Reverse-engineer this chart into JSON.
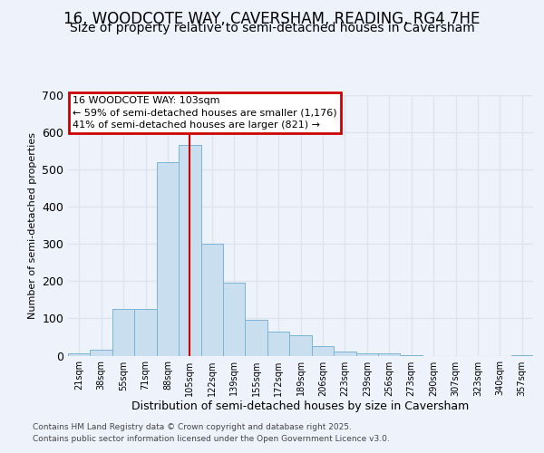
{
  "title1": "16, WOODCOTE WAY, CAVERSHAM, READING, RG4 7HE",
  "title2": "Size of property relative to semi-detached houses in Caversham",
  "xlabel": "Distribution of semi-detached houses by size in Caversham",
  "ylabel": "Number of semi-detached properties",
  "categories": [
    "21sqm",
    "38sqm",
    "55sqm",
    "71sqm",
    "88sqm",
    "105sqm",
    "122sqm",
    "139sqm",
    "155sqm",
    "172sqm",
    "189sqm",
    "206sqm",
    "223sqm",
    "239sqm",
    "256sqm",
    "273sqm",
    "290sqm",
    "307sqm",
    "323sqm",
    "340sqm",
    "357sqm"
  ],
  "values": [
    5,
    15,
    125,
    125,
    520,
    565,
    300,
    195,
    95,
    65,
    55,
    25,
    10,
    5,
    5,
    2,
    0,
    0,
    0,
    0,
    2
  ],
  "bar_color": "#c9dff0",
  "bar_edge_color": "#7ab4d4",
  "red_line_index": 5,
  "annotation_title": "16 WOODCOTE WAY: 103sqm",
  "annotation_line1": "← 59% of semi-detached houses are smaller (1,176)",
  "annotation_line2": "41% of semi-detached houses are larger (821) →",
  "annotation_box_color": "#ffffff",
  "annotation_box_edge": "#cc0000",
  "red_line_color": "#cc0000",
  "footer1": "Contains HM Land Registry data © Crown copyright and database right 2025.",
  "footer2": "Contains public sector information licensed under the Open Government Licence v3.0.",
  "ylim": [
    0,
    700
  ],
  "yticks": [
    0,
    100,
    200,
    300,
    400,
    500,
    600,
    700
  ],
  "background_color": "#eef2fb",
  "grid_color": "#dde4f0",
  "title1_fontsize": 12,
  "title2_fontsize": 10
}
